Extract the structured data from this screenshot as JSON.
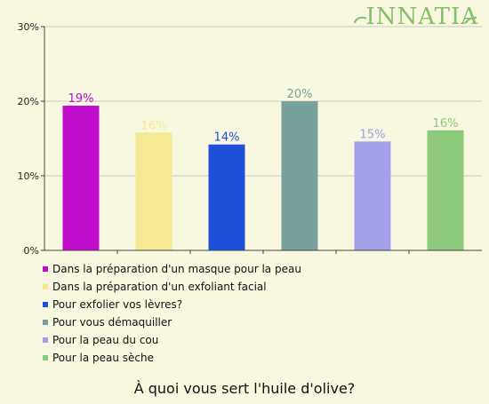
{
  "logo": {
    "text": "INNATIA"
  },
  "chart_data": {
    "type": "bar",
    "title": "À quoi vous sert l'huile d'olive?",
    "ylim": [
      0,
      30
    ],
    "y_ticks": [
      "0%",
      "10%",
      "20%",
      "30%"
    ],
    "grid": "horizontal",
    "legend_position": "bottom",
    "categories": [
      "Dans la préparation d'un masque pour la peau",
      "Dans la préparation d'un exfoliant facial",
      "Pour exfolier vos lèvres?",
      "Pour vous démaquiller",
      "Pour la peau du cou",
      "Pour la peau sèche"
    ],
    "values": [
      19.4,
      15.8,
      14.2,
      20.0,
      14.6,
      16.1
    ],
    "labels": [
      "19%",
      "16%",
      "14%",
      "20%",
      "15%",
      "16%"
    ],
    "colors": [
      "#c00ccc",
      "#f5ea91",
      "#1f4fd8",
      "#78a09c",
      "#a3a0e8",
      "#8cc97b"
    ]
  }
}
